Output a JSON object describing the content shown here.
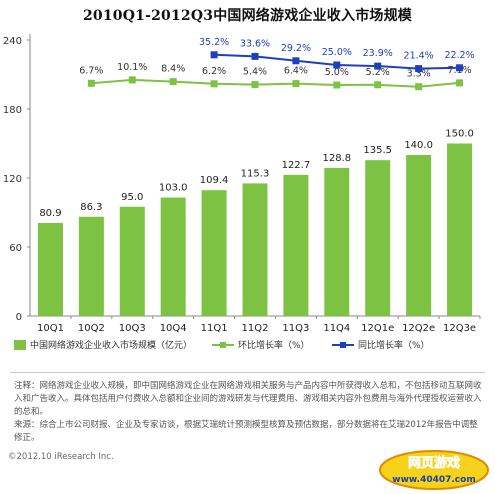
{
  "title": "2010Q1-2012Q3中国网络游戏企业收入市场规模",
  "chart_data": {
    "type": "bar",
    "categories": [
      "10Q1",
      "10Q2",
      "10Q3",
      "10Q4",
      "11Q1",
      "11Q2",
      "11Q3",
      "11Q4",
      "12Q1e",
      "12Q2e",
      "12Q3e"
    ],
    "ylim": [
      0,
      240
    ],
    "yticks": [
      0,
      60,
      120,
      180,
      240
    ],
    "grid": false,
    "series": [
      {
        "name": "中国网络游戏企业收入市场规模（亿元）",
        "type": "bar",
        "color": "#7dc242",
        "values": [
          80.9,
          86.3,
          95.0,
          103.0,
          109.4,
          115.3,
          122.7,
          128.8,
          135.5,
          140.0,
          150.0
        ],
        "labels": [
          "80.9",
          "86.3",
          "95.0",
          "103.0",
          "109.4",
          "115.3",
          "122.7",
          "128.8",
          "135.5",
          "140.0",
          "150.0"
        ]
      },
      {
        "name": "环比增长率（%）",
        "type": "line",
        "color": "#7dc242",
        "values": [
          null,
          6.7,
          10.1,
          8.4,
          6.2,
          5.4,
          6.4,
          5.0,
          5.2,
          3.3,
          7.1
        ],
        "labels": [
          "",
          "6.7%",
          "10.1%",
          "8.4%",
          "6.2%",
          "5.4%",
          "6.4%",
          "5.0%",
          "5.2%",
          "3.3%",
          "7.1%"
        ]
      },
      {
        "name": "同比增长率（%）",
        "type": "line",
        "color": "#1f3fbf",
        "values": [
          null,
          null,
          null,
          null,
          35.2,
          33.6,
          29.2,
          25.0,
          23.9,
          21.4,
          22.2
        ],
        "labels": [
          "",
          "",
          "",
          "",
          "35.2%",
          "33.6%",
          "29.2%",
          "25.0%",
          "23.9%",
          "21.4%",
          "22.2%"
        ]
      }
    ]
  },
  "notes": [
    "注释：网络游戏企业收入规模，即中国网络游戏企业在网络游戏相关服务与产品内容中所获得收入总和，不包括移动互联网收入和广告收入。具体包括用户付费收入总额和企业间的游戏研发与代理费用、游戏相关内容外包费用与海外代理授权运营收入的总和。",
    "来源：综合上市公司财报、企业及专家访谈，根据艾瑞统计预测模型核算及预估数据，部分数据将在艾瑞2012年报告中调整修正。"
  ],
  "copyright": "©2012.10 iResearch Inc.",
  "watermark": {
    "line1": "网页游戏",
    "line2": "www.40407.com"
  }
}
